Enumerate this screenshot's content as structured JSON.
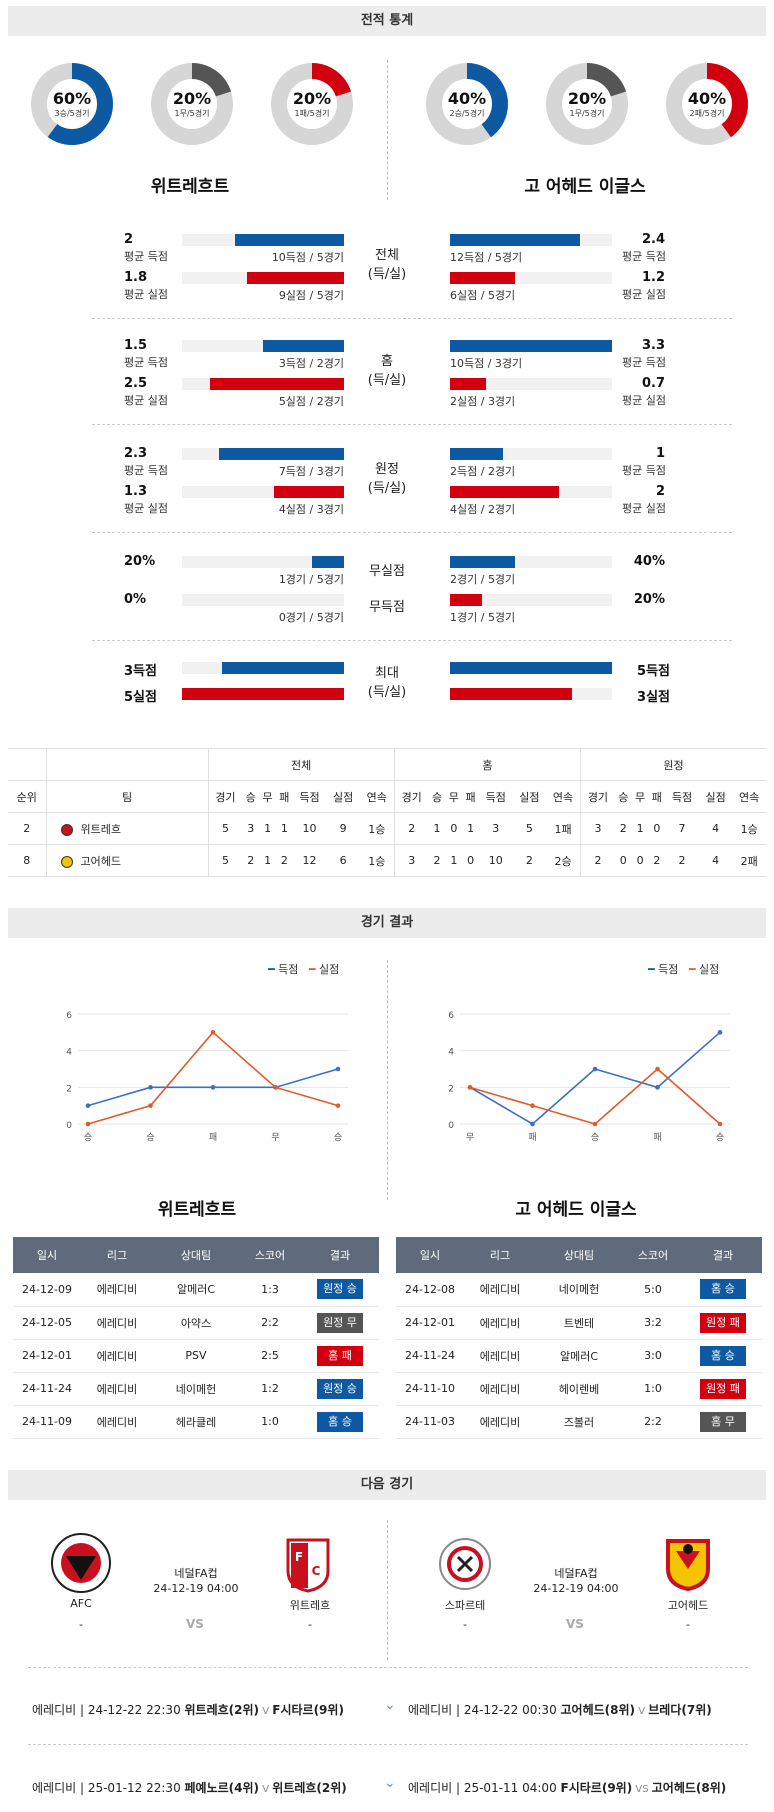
{
  "sections": {
    "stats": "전적 통계",
    "results": "경기 결과",
    "next": "다음 경기"
  },
  "donuts_left": [
    {
      "pct": "60%",
      "sub": "3승/5경기",
      "frac": 0.6,
      "color": "#0d5aa3"
    },
    {
      "pct": "20%",
      "sub": "1무/5경기",
      "frac": 0.2,
      "color": "#555555"
    },
    {
      "pct": "20%",
      "sub": "1패/5경기",
      "frac": 0.2,
      "color": "#d2000f"
    }
  ],
  "donuts_right": [
    {
      "pct": "40%",
      "sub": "2승/5경기",
      "frac": 0.4,
      "color": "#0d5aa3"
    },
    {
      "pct": "20%",
      "sub": "1무/5경기",
      "frac": 0.2,
      "color": "#555555"
    },
    {
      "pct": "40%",
      "sub": "2패/5경기",
      "frac": 0.4,
      "color": "#d2000f"
    }
  ],
  "teams": {
    "left": "위트레흐트",
    "right": "고 어헤드 이글스"
  },
  "stat_groups": [
    {
      "center": "전체\n(득/실)",
      "left": [
        {
          "val": "2",
          "label": "평균 득점",
          "cap": "10득점 / 5경기",
          "frac": 0.67,
          "color": "blue"
        },
        {
          "val": "1.8",
          "label": "평균 실점",
          "cap": "9실점 / 5경기",
          "frac": 0.6,
          "color": "red"
        }
      ],
      "right": [
        {
          "val": "2.4",
          "label": "평균 득점",
          "cap": "12득점 / 5경기",
          "frac": 0.8,
          "color": "blue"
        },
        {
          "val": "1.2",
          "label": "평균 실점",
          "cap": "6실점 / 5경기",
          "frac": 0.4,
          "color": "red"
        }
      ]
    },
    {
      "center": "홈\n(득/실)",
      "left": [
        {
          "val": "1.5",
          "label": "평균 득점",
          "cap": "3득점 / 2경기",
          "frac": 0.5,
          "color": "blue"
        },
        {
          "val": "2.5",
          "label": "평균 실점",
          "cap": "5실점 / 2경기",
          "frac": 0.83,
          "color": "red"
        }
      ],
      "right": [
        {
          "val": "3.3",
          "label": "평균 득점",
          "cap": "10득점 / 3경기",
          "frac": 1.0,
          "color": "blue"
        },
        {
          "val": "0.7",
          "label": "평균 실점",
          "cap": "2실점 / 3경기",
          "frac": 0.22,
          "color": "red"
        }
      ]
    },
    {
      "center": "원정\n(득/실)",
      "left": [
        {
          "val": "2.3",
          "label": "평균 득점",
          "cap": "7득점 / 3경기",
          "frac": 0.77,
          "color": "blue"
        },
        {
          "val": "1.3",
          "label": "평균 실점",
          "cap": "4실점 / 3경기",
          "frac": 0.43,
          "color": "red"
        }
      ],
      "right": [
        {
          "val": "1",
          "label": "평균 득점",
          "cap": "2득점 / 2경기",
          "frac": 0.33,
          "color": "blue"
        },
        {
          "val": "2",
          "label": "평균 실점",
          "cap": "4실점 / 2경기",
          "frac": 0.67,
          "color": "red"
        }
      ]
    },
    {
      "center2": [
        "무실점",
        "무득점"
      ],
      "left": [
        {
          "val": "20%",
          "label": "",
          "cap": "1경기 / 5경기",
          "frac": 0.2,
          "color": "blue"
        },
        {
          "val": "0%",
          "label": "",
          "cap": "0경기 / 5경기",
          "frac": 0.0,
          "color": "red"
        }
      ],
      "right": [
        {
          "val": "40%",
          "label": "",
          "cap": "2경기 / 5경기",
          "frac": 0.4,
          "color": "blue"
        },
        {
          "val": "20%",
          "label": "",
          "cap": "1경기 / 5경기",
          "frac": 0.2,
          "color": "red"
        }
      ]
    }
  ],
  "max": {
    "center": "최대\n(득/실)",
    "left": [
      {
        "val": "3득점",
        "frac": 0.75,
        "color": "blue"
      },
      {
        "val": "5실점",
        "frac": 1.0,
        "color": "red"
      }
    ],
    "right": [
      {
        "val": "5득점",
        "frac": 1.0,
        "color": "blue"
      },
      {
        "val": "3실점",
        "frac": 0.75,
        "color": "red"
      }
    ]
  },
  "ranking": {
    "groups": [
      "전체",
      "홈",
      "원정"
    ],
    "cols": [
      "순위",
      "팀",
      "경기",
      "승",
      "무",
      "패",
      "득점",
      "실점",
      "연속",
      "경기",
      "승",
      "무",
      "패",
      "득점",
      "실점",
      "연속",
      "경기",
      "승",
      "무",
      "패",
      "득점",
      "실점",
      "연속"
    ],
    "rows": [
      {
        "rank": "2",
        "team": "위트레흐",
        "vals": [
          "5",
          "3",
          "1",
          "1",
          "10",
          "9",
          "1승",
          "2",
          "1",
          "0",
          "1",
          "3",
          "5",
          "1패",
          "3",
          "2",
          "1",
          "0",
          "7",
          "4",
          "1승"
        ]
      },
      {
        "rank": "8",
        "team": "고어헤드",
        "vals": [
          "5",
          "2",
          "1",
          "2",
          "12",
          "6",
          "1승",
          "3",
          "2",
          "1",
          "0",
          "10",
          "2",
          "2승",
          "2",
          "0",
          "0",
          "2",
          "2",
          "4",
          "2패"
        ]
      }
    ]
  },
  "charts": {
    "legend_score": "득점",
    "legend_concede": "실점",
    "left": {
      "labels": [
        "승",
        "승",
        "패",
        "무",
        "승"
      ],
      "score": [
        1,
        2,
        2,
        2,
        3
      ],
      "concede": [
        0,
        1,
        5,
        2,
        1
      ],
      "yticks": [
        "0",
        "2",
        "4",
        "6"
      ]
    },
    "right": {
      "labels": [
        "무",
        "패",
        "승",
        "패",
        "승"
      ],
      "score": [
        2,
        0,
        3,
        2,
        5
      ],
      "concede": [
        2,
        1,
        0,
        3,
        0
      ],
      "yticks": [
        "0",
        "2",
        "4",
        "6"
      ]
    }
  },
  "results_head": [
    "일시",
    "리그",
    "상대팀",
    "스코어",
    "결과"
  ],
  "results_left": [
    {
      "date": "24-12-09",
      "league": "에레디비",
      "opp": "알메러C",
      "score": "1:3",
      "result": "원정 승",
      "color": "blue"
    },
    {
      "date": "24-12-05",
      "league": "에레디비",
      "opp": "아약스",
      "score": "2:2",
      "result": "원정 무",
      "color": "gray"
    },
    {
      "date": "24-12-01",
      "league": "에레디비",
      "opp": "PSV",
      "score": "2:5",
      "result": "홈 패",
      "color": "red"
    },
    {
      "date": "24-11-24",
      "league": "에레디비",
      "opp": "네이메헌",
      "score": "1:2",
      "result": "원정 승",
      "color": "blue"
    },
    {
      "date": "24-11-09",
      "league": "에레디비",
      "opp": "헤라클레",
      "score": "1:0",
      "result": "홈 승",
      "color": "blue"
    }
  ],
  "results_right": [
    {
      "date": "24-12-08",
      "league": "에레디비",
      "opp": "네이메헌",
      "score": "5:0",
      "result": "홈 승",
      "color": "blue"
    },
    {
      "date": "24-12-01",
      "league": "에레디비",
      "opp": "트벤테",
      "score": "3:2",
      "result": "원정 패",
      "color": "red"
    },
    {
      "date": "24-11-24",
      "league": "에레디비",
      "opp": "알메러C",
      "score": "3:0",
      "result": "홈 승",
      "color": "blue"
    },
    {
      "date": "24-11-10",
      "league": "에레디비",
      "opp": "헤이렌베",
      "score": "1:0",
      "result": "원정 패",
      "color": "red"
    },
    {
      "date": "24-11-03",
      "league": "에레디비",
      "opp": "즈볼러",
      "score": "2:2",
      "result": "홈 무",
      "color": "gray"
    }
  ],
  "next_left": {
    "home": "AFC",
    "home_sub": "-",
    "comp": "네덜FA컵",
    "time": "24-12-19 04:00",
    "vs": "VS",
    "away": "위트레흐",
    "away_sub": "-"
  },
  "next_right": {
    "home": "스파르테",
    "home_sub": "-",
    "comp": "네덜FA컵",
    "time": "24-12-19 04:00",
    "vs": "VS",
    "away": "고어헤드",
    "away_sub": "-"
  },
  "schedule": [
    {
      "left_pre": "에레디비 | 24-12-22 22:30 ",
      "left_t1": "위트레흐(2위)",
      "left_vs": " V ",
      "left_t2": "F시타르(9위)",
      "right_pre": "에레디비 | 24-12-22 00:30 ",
      "right_t1": "고어헤드(8위)",
      "right_vs": " V ",
      "right_t2": "브레다(7위)"
    },
    {
      "left_pre": "에레디비 | 25-01-12 22:30 ",
      "left_t1": "페예노르(4위)",
      "left_vs": " V ",
      "left_t2": "위트레흐(2위)",
      "right_pre": "에레디비 | 25-01-11 04:00 ",
      "right_t1": "F시타르(9위)",
      "right_vs": " VS ",
      "right_t2": "고어헤드(8위)"
    }
  ]
}
